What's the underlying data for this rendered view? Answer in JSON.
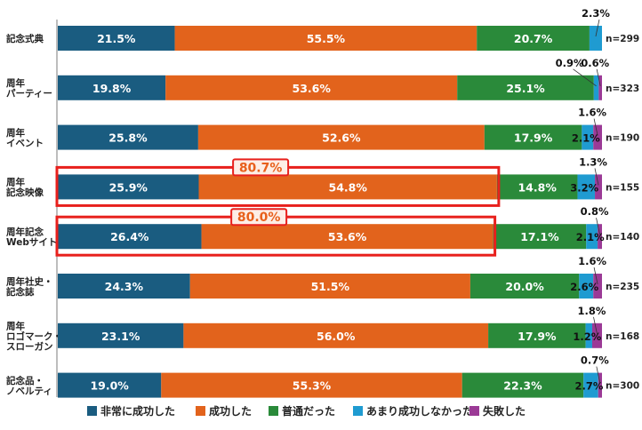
{
  "chart_data": {
    "type": "bar",
    "orientation": "horizontal",
    "stacked": "100%",
    "categories": [
      [
        "記念式典"
      ],
      [
        "周年",
        "パーティー"
      ],
      [
        "周年",
        "イベント"
      ],
      [
        "周年",
        "記念映像"
      ],
      [
        "周年記念",
        "Webサイト"
      ],
      [
        "周年社史・",
        "記念誌"
      ],
      [
        "周年",
        "ロゴマーク・",
        "スローガン"
      ],
      [
        "記念品・",
        "ノベルティ"
      ]
    ],
    "n_labels": [
      "n=299",
      "n=323",
      "n=190",
      "n=155",
      "n=140",
      "n=235",
      "n=168",
      "n=300"
    ],
    "series": [
      {
        "name": "非常に成功した",
        "color": "#1a5c80",
        "values": [
          21.5,
          19.8,
          25.8,
          25.9,
          26.4,
          24.3,
          23.1,
          19.0
        ],
        "labels": [
          "21.5%",
          "19.8%",
          "25.8%",
          "25.9%",
          "26.4%",
          "24.3%",
          "23.1%",
          "19.0%"
        ]
      },
      {
        "name": "成功した",
        "color": "#e2631c",
        "values": [
          55.5,
          53.6,
          52.6,
          54.8,
          53.6,
          51.5,
          56.0,
          55.3
        ],
        "labels": [
          "55.5%",
          "53.6%",
          "52.6%",
          "54.8%",
          "53.6%",
          "51.5%",
          "56.0%",
          "55.3%"
        ]
      },
      {
        "name": "普通だった",
        "color": "#2a8a3a",
        "values": [
          20.7,
          25.1,
          17.9,
          14.8,
          17.1,
          20.0,
          17.9,
          22.3
        ],
        "labels": [
          "20.7%",
          "25.1%",
          "17.9%",
          "14.8%",
          "17.1%",
          "20.0%",
          "17.9%",
          "22.3%"
        ]
      },
      {
        "name": "あまり成功しなかった",
        "color": "#1f9bd1",
        "values": [
          2.3,
          0.9,
          2.1,
          3.2,
          2.1,
          2.6,
          1.2,
          2.7
        ],
        "labels": [
          "2.3%",
          "0.9%",
          "2.1%",
          "3.2%",
          "2.1%",
          "2.6%",
          "1.2%",
          "2.7%"
        ]
      },
      {
        "name": "失敗した",
        "color": "#9b3a96",
        "values": [
          0.0,
          0.6,
          1.6,
          1.3,
          0.8,
          1.6,
          1.8,
          0.7
        ],
        "labels": [
          "",
          "0.6%",
          "1.6%",
          "1.3%",
          "0.8%",
          "1.6%",
          "1.8%",
          "0.7%"
        ]
      }
    ],
    "highlights": [
      {
        "row": 3,
        "label": "80.7%"
      },
      {
        "row": 4,
        "label": "80.0%"
      }
    ],
    "legend_position": "bottom",
    "grid": false
  }
}
